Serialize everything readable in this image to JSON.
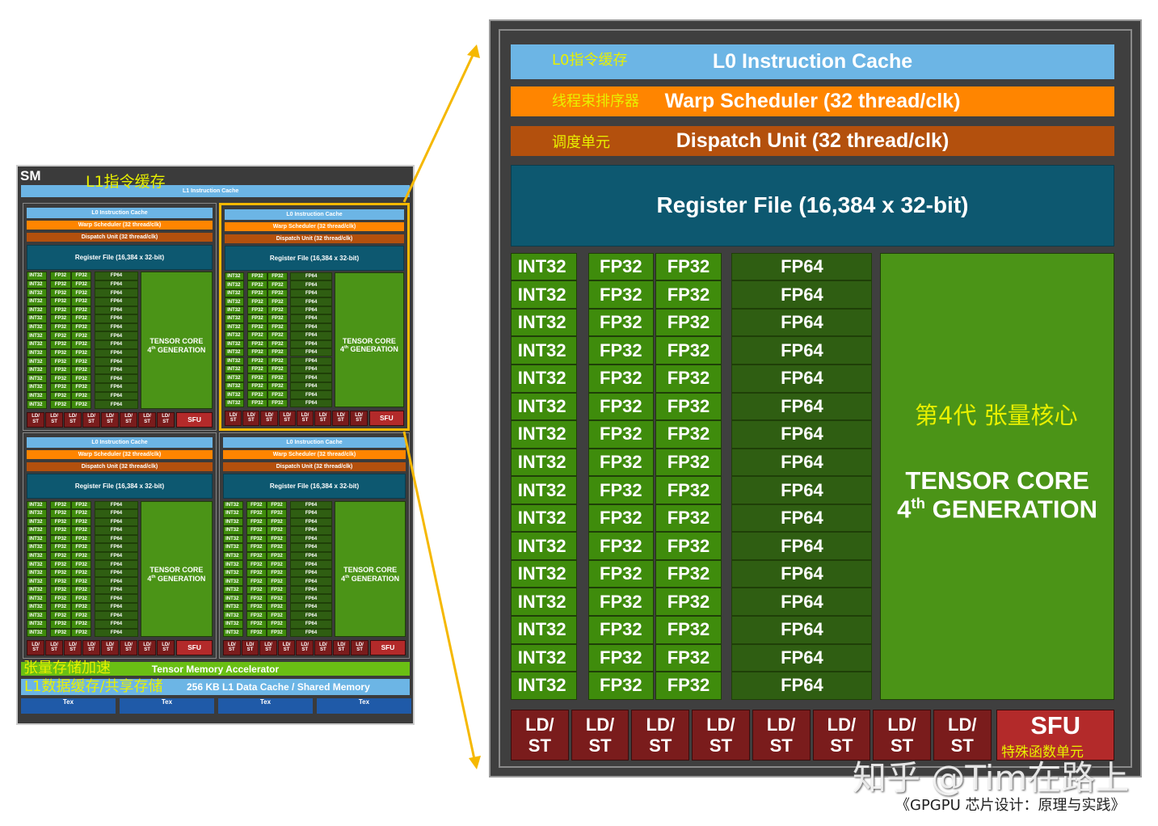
{
  "sm": {
    "label": "SM",
    "l1_instruction_cache": "L1 Instruction Cache",
    "l1_instruction_cache_cn": "L1指令缓存",
    "tma": "Tensor Memory Accelerator",
    "tma_cn": "张量存储加速",
    "l1_data_cache": "256 KB L1 Data Cache / Shared Memory",
    "l1_data_cache_cn": "L1数据缓存/共享存储",
    "tex": [
      "Tex",
      "Tex",
      "Tex",
      "Tex"
    ]
  },
  "partition": {
    "l0": "L0 Instruction Cache",
    "warp": "Warp Scheduler (32 thread/clk)",
    "dispatch": "Dispatch Unit (32 thread/clk)",
    "register": "Register File (16,384 x 32-bit)",
    "int32": "INT32",
    "fp32": "FP32",
    "fp64": "FP64",
    "tensor_line1": "TENSOR CORE",
    "tensor_gen_num": "4",
    "tensor_gen_sup": "th",
    "tensor_gen_text": " GENERATION",
    "ldst_top": "LD/",
    "ldst_bottom": "ST",
    "sfu": "SFU"
  },
  "zoom_cn": {
    "l0": "L0指令缓存",
    "warp": "线程束排序器",
    "dispatch": "调度单元",
    "tensor": "第4代 张量核心",
    "sfu": "特殊函数单元"
  },
  "watermark": "知乎 @Tim在路上",
  "caption": "《GPGPU 芯片设计：原理与实践》",
  "colors": {
    "l0_cache": "#6cb5e5",
    "warp_scheduler": "#ff8500",
    "dispatch_unit": "#b3500d",
    "register_file": "#0d5870",
    "compute_unit": "#3f8c0c",
    "fp64_unit": "#2f5e12",
    "tensor_core": "#4b9417",
    "ldst": "#7a1c1c",
    "sfu": "#b32a2a",
    "highlight": "#f5b800",
    "annotation": "#e8f000"
  }
}
